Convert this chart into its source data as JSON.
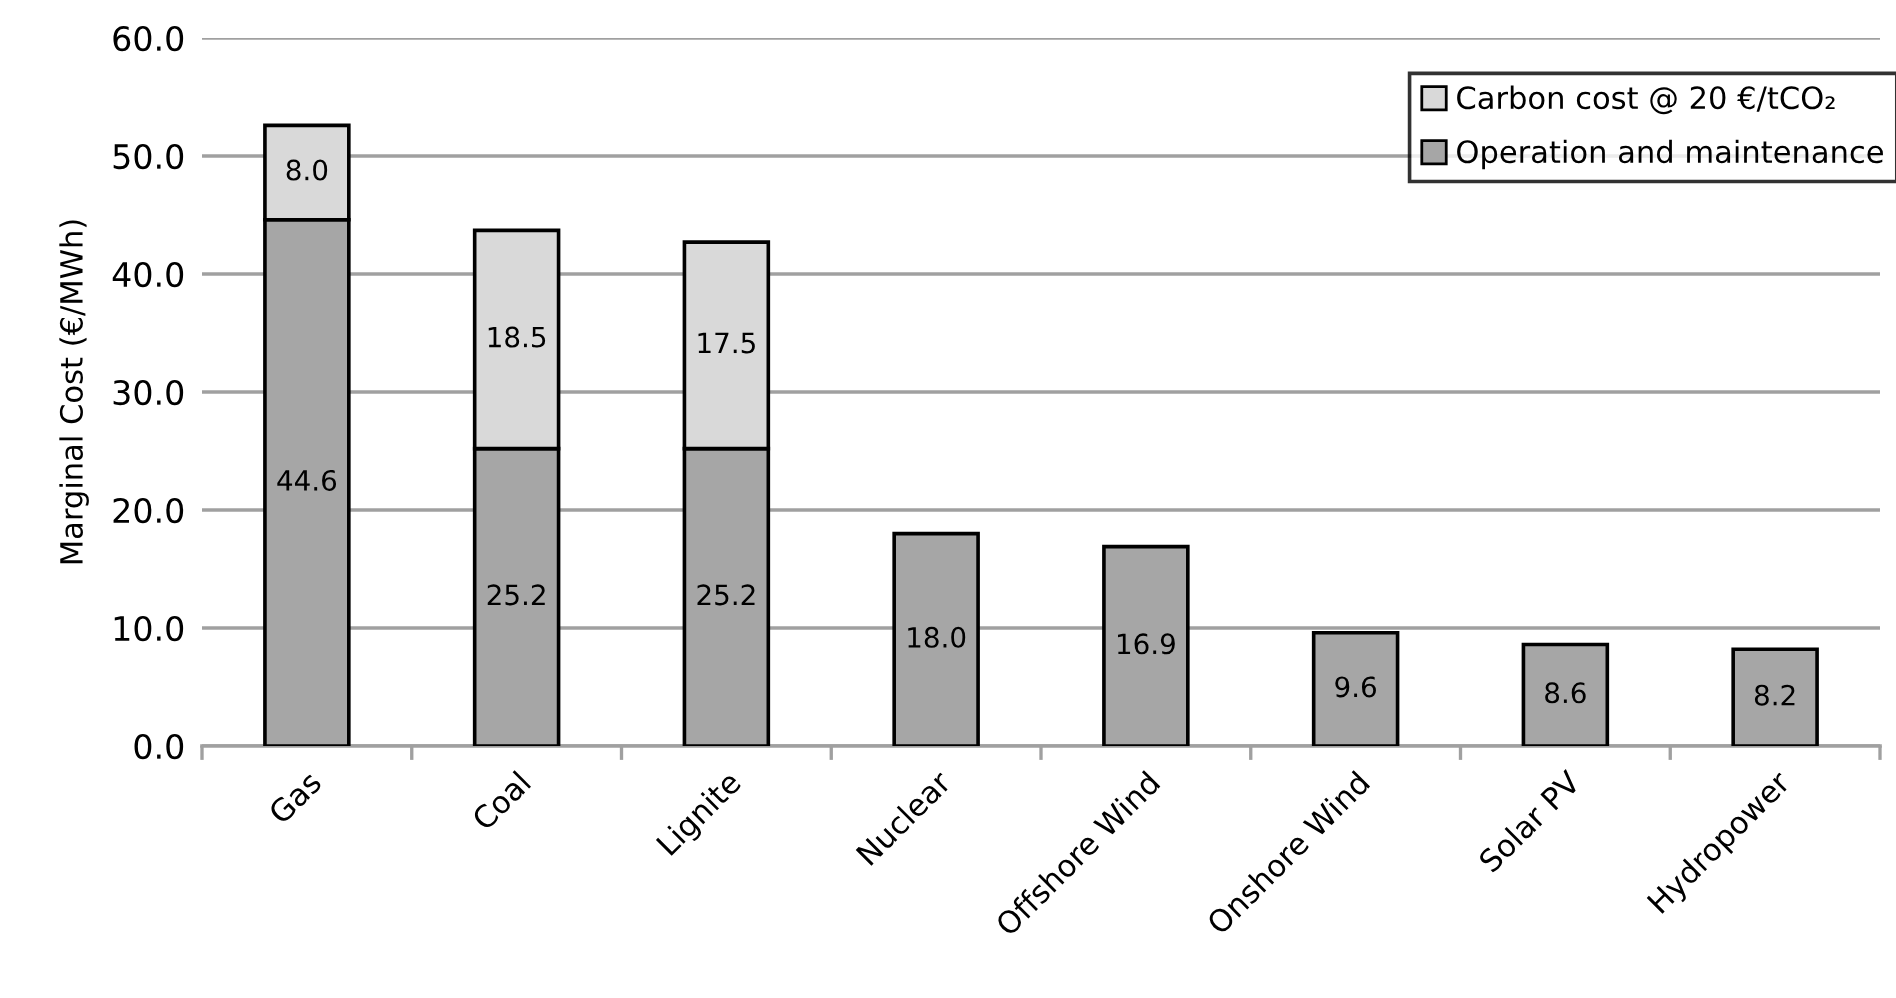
{
  "chart_data": {
    "type": "bar",
    "stacked": true,
    "ylabel": "Marginal Cost (€/MWh)",
    "categories": [
      "Gas",
      "Coal",
      "Lignite",
      "Nuclear",
      "Offshore Wind",
      "Onshore Wind",
      "Solar PV",
      "Hydropower"
    ],
    "series": [
      {
        "name": "Operation and maintenance",
        "color": "#a6a6a6",
        "values": [
          44.6,
          25.2,
          25.2,
          18.0,
          16.9,
          9.6,
          8.6,
          8.2
        ],
        "value_labels": [
          "44.6",
          "25.2",
          "25.2",
          "18.0",
          "16.9",
          "9.6",
          "8.6",
          "8.2"
        ]
      },
      {
        "name": "Carbon cost @ 20 €/tCO₂",
        "color": "#d9d9d9",
        "values": [
          8.0,
          18.5,
          17.5,
          null,
          null,
          null,
          null,
          null
        ],
        "value_labels": [
          "8.0",
          "18.5",
          "17.5",
          null,
          null,
          null,
          null,
          null
        ]
      }
    ],
    "ylim": [
      0,
      60
    ],
    "yticks": [
      {
        "value": 0,
        "label": "0.0"
      },
      {
        "value": 10,
        "label": "10.0"
      },
      {
        "value": 20,
        "label": "20.0"
      },
      {
        "value": 30,
        "label": "30.0"
      },
      {
        "value": 40,
        "label": "40.0"
      },
      {
        "value": 50,
        "label": "50.0"
      },
      {
        "value": 60,
        "label": "60.0"
      }
    ],
    "grid": "y",
    "legend": "top right"
  }
}
